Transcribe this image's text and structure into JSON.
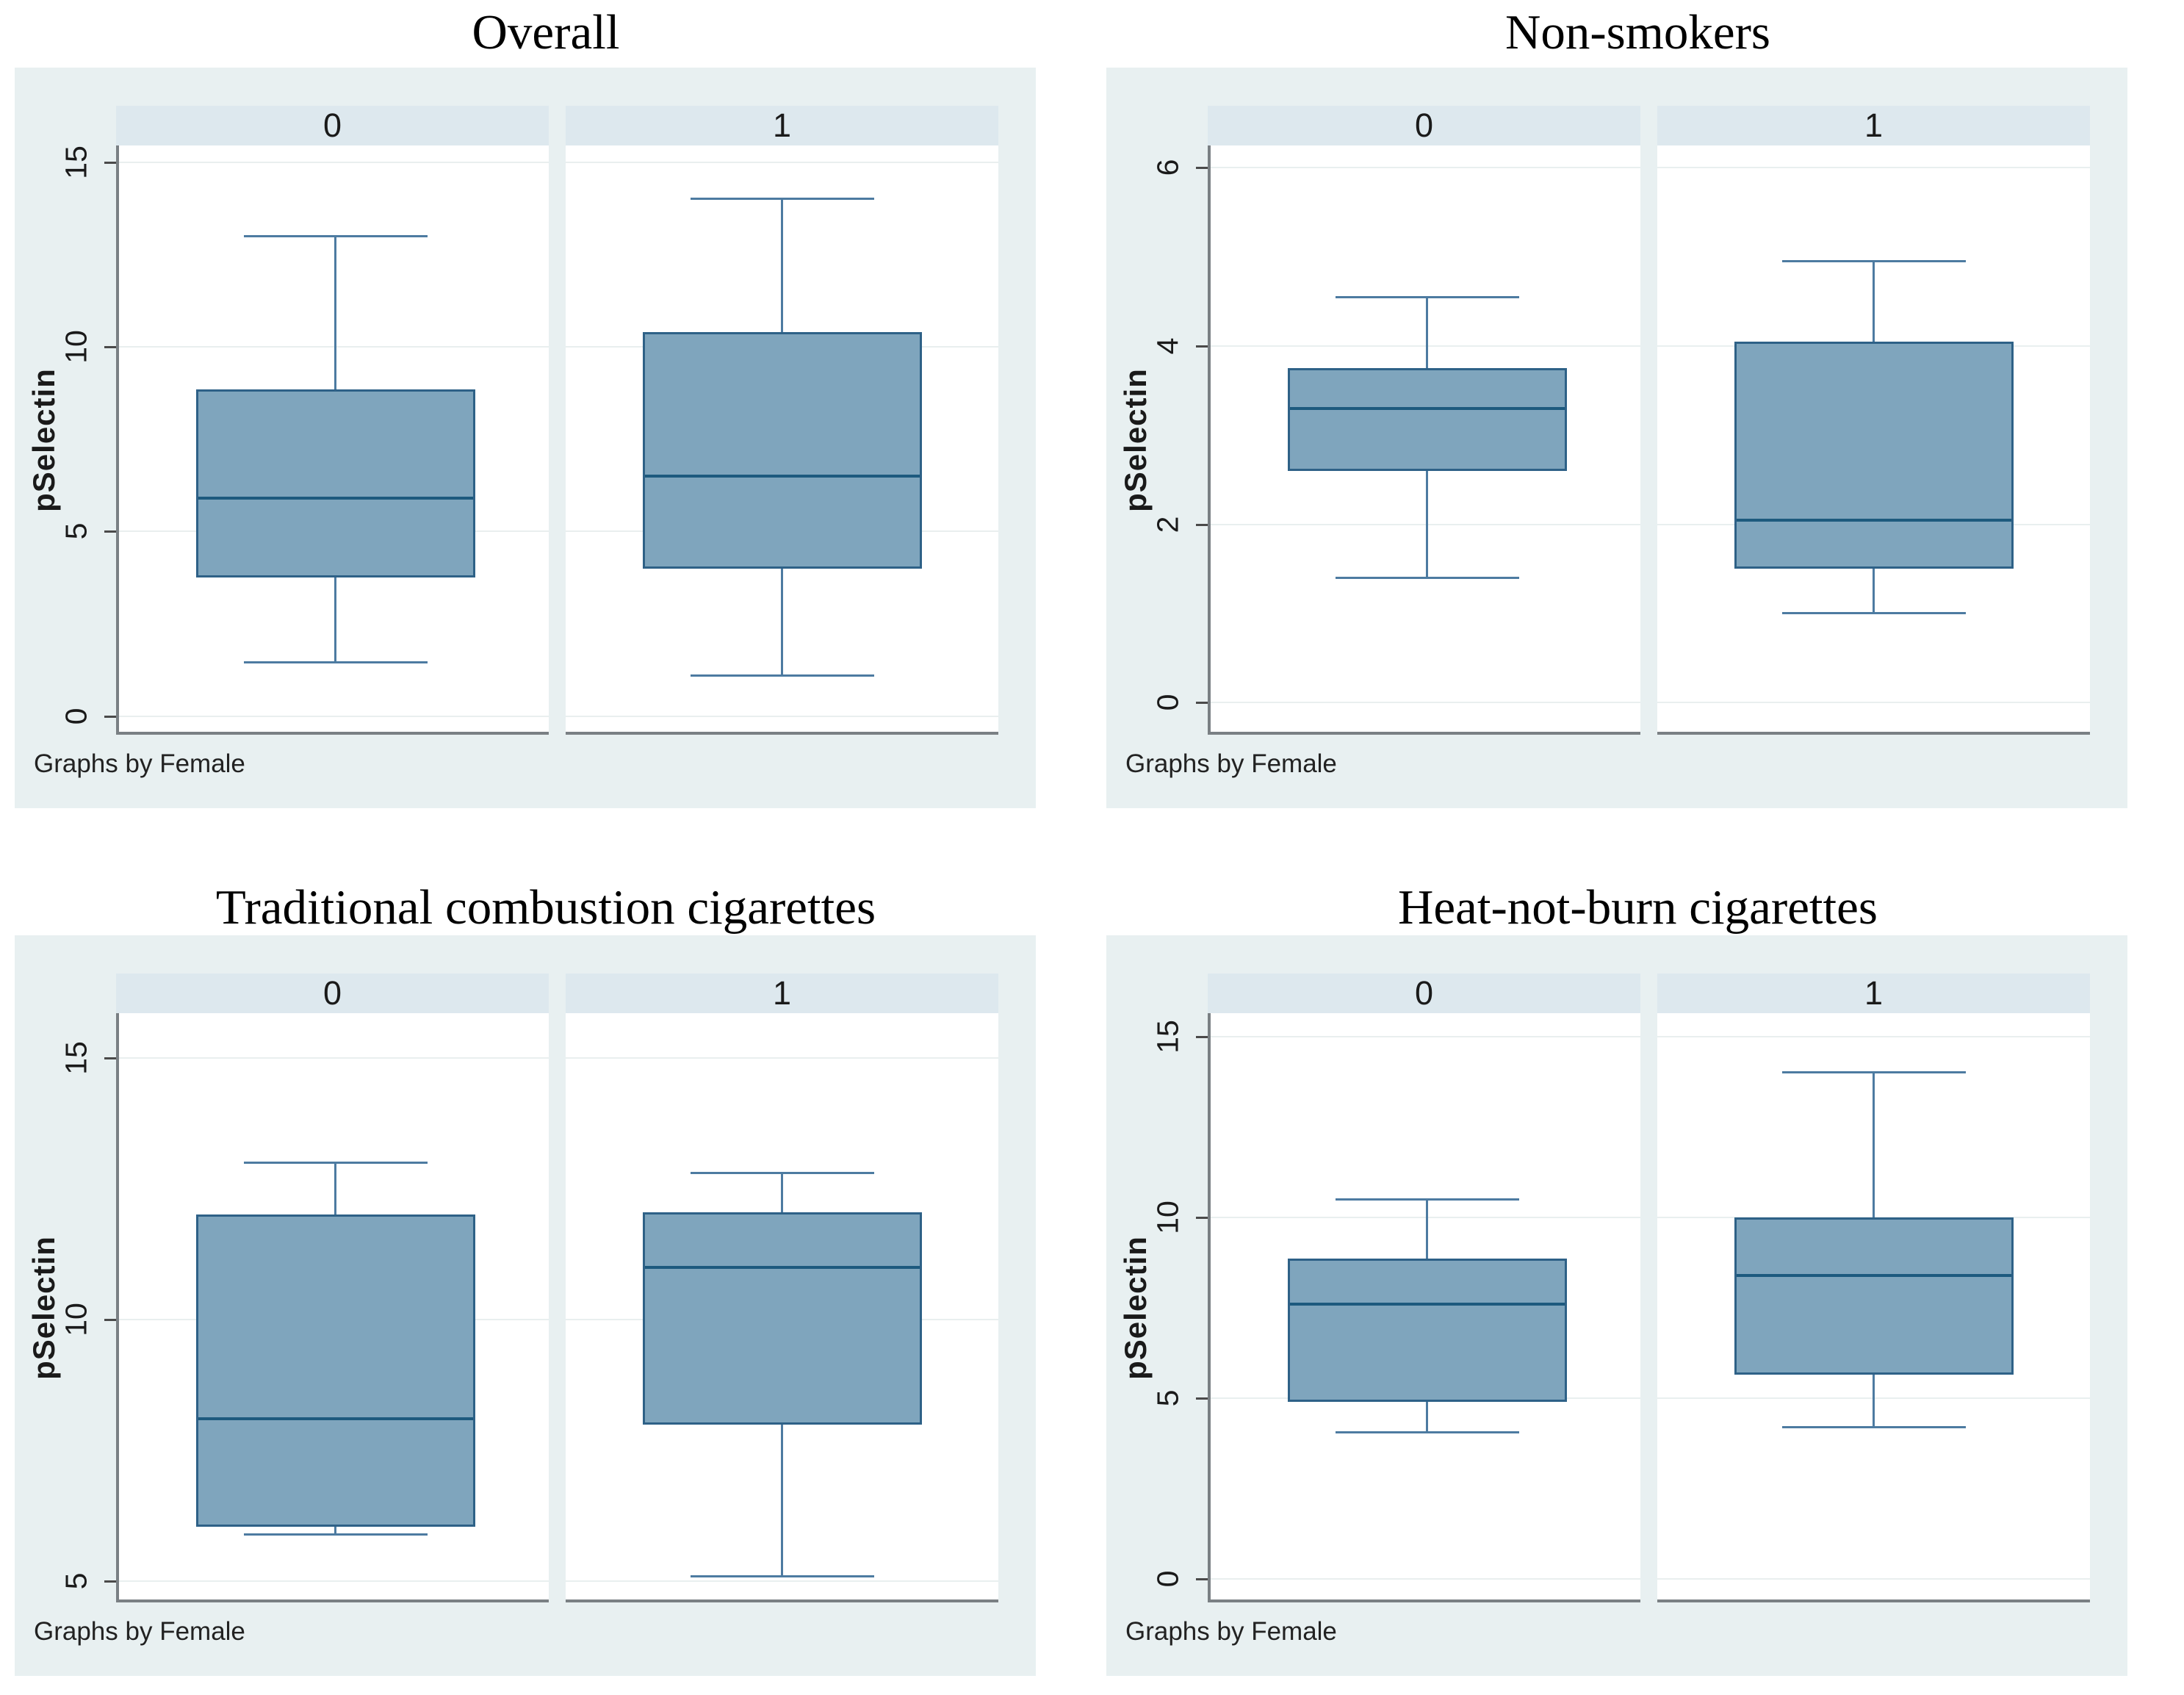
{
  "colors": {
    "figure_bg": "#e8f0f1",
    "strip_bg": "#dde8ee",
    "plot_bg": "#ffffff",
    "gridline": "#e9efef",
    "axis_line": "#7a8084",
    "tick_color": "#4a4a4a",
    "box_fill": "#7fa5bd",
    "box_border": "#2e6187",
    "median_line": "#1d5a7e",
    "whisker": "#4d7ba1",
    "title_color": "#000000",
    "note_color": "#222222"
  },
  "chart_data": [
    {
      "type": "box",
      "title": "Overall",
      "ylabel": "pSelectin",
      "note": "Graphs by Female",
      "categories": [
        "0",
        "1"
      ],
      "yticks": [
        0,
        5,
        10,
        15
      ],
      "ylim": [
        -0.5,
        15.45
      ],
      "grid": true,
      "legend_position": "none",
      "series": [
        {
          "name": "0",
          "low": 1.45,
          "q1": 3.75,
          "median": 5.9,
          "q3": 8.85,
          "high": 13.0
        },
        {
          "name": "1",
          "low": 1.1,
          "q1": 4.0,
          "median": 6.5,
          "q3": 10.4,
          "high": 14.0
        }
      ]
    },
    {
      "type": "box",
      "title": "Non-smokers",
      "ylabel": "pSelectin",
      "note": "Graphs by Female",
      "categories": [
        "0",
        "1"
      ],
      "yticks": [
        0,
        2,
        4,
        6
      ],
      "ylim": [
        -0.36,
        6.25
      ],
      "grid": true,
      "legend_position": "none",
      "series": [
        {
          "name": "0",
          "low": 1.4,
          "q1": 2.6,
          "median": 3.3,
          "q3": 3.75,
          "high": 4.55
        },
        {
          "name": "1",
          "low": 1.0,
          "q1": 1.5,
          "median": 2.05,
          "q3": 4.05,
          "high": 4.95
        }
      ]
    },
    {
      "type": "box",
      "title": "Traditional combustion cigarettes",
      "ylabel": "pSelectin",
      "note": "Graphs by Female",
      "categories": [
        "0",
        "1"
      ],
      "yticks": [
        5,
        10,
        15
      ],
      "ylim": [
        4.6,
        15.85
      ],
      "grid": true,
      "legend_position": "none",
      "series": [
        {
          "name": "0",
          "low": 5.9,
          "q1": 6.05,
          "median": 8.1,
          "q3": 12.0,
          "high": 13.0
        },
        {
          "name": "1",
          "low": 5.1,
          "q1": 8.0,
          "median": 11.0,
          "q3": 12.05,
          "high": 12.8
        }
      ]
    },
    {
      "type": "box",
      "title": "Heat-not-burn cigarettes",
      "ylabel": "pSelectin",
      "note": "Graphs by Female",
      "categories": [
        "0",
        "1"
      ],
      "yticks": [
        0,
        5,
        10,
        15
      ],
      "ylim": [
        -0.64,
        15.64
      ],
      "grid": true,
      "legend_position": "none",
      "series": [
        {
          "name": "0",
          "low": 4.05,
          "q1": 4.9,
          "median": 7.6,
          "q3": 8.85,
          "high": 10.5
        },
        {
          "name": "1",
          "low": 4.2,
          "q1": 5.65,
          "median": 8.4,
          "q3": 10.0,
          "high": 14.0
        }
      ]
    }
  ]
}
